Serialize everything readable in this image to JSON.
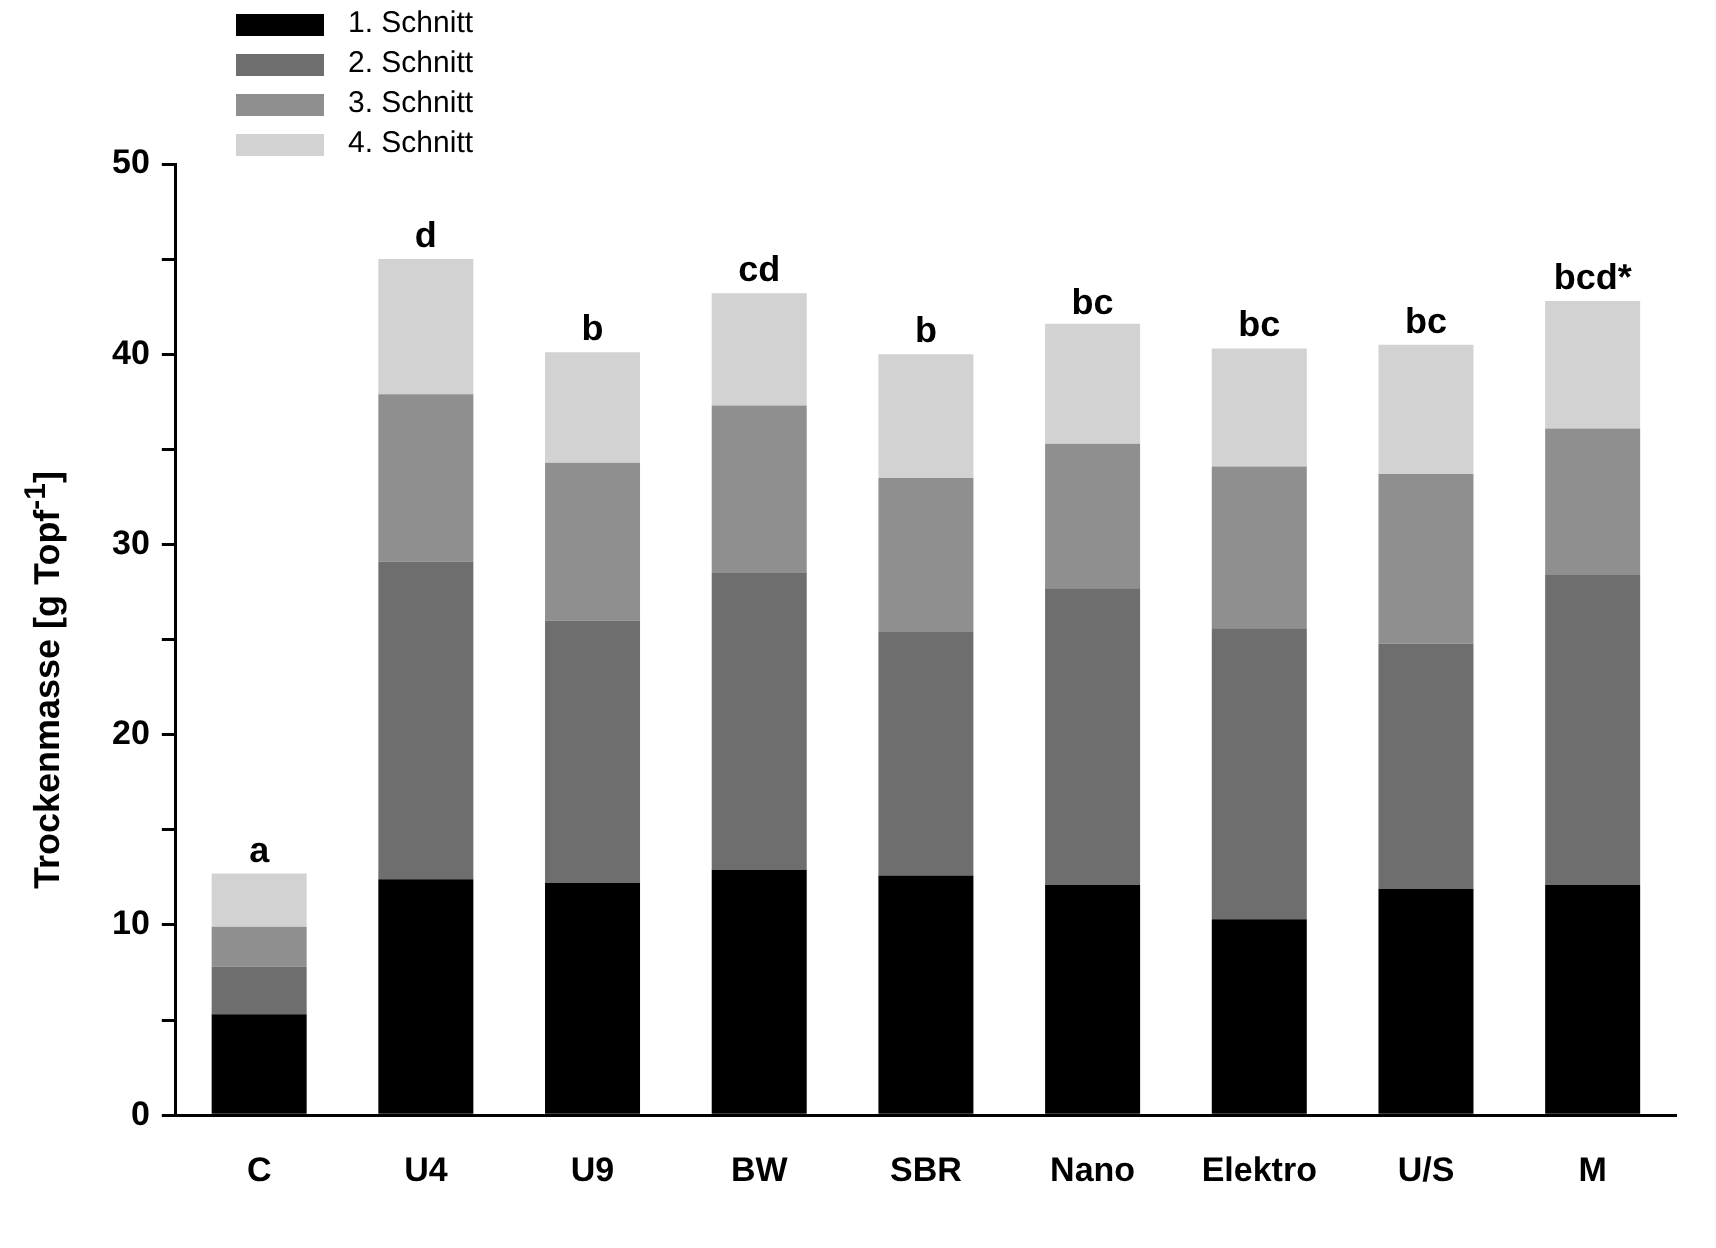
{
  "chart_data": {
    "type": "bar",
    "stacked": true,
    "ylabel": "Trockenmasse [g Topf$^{-1}$]",
    "categories": [
      "C",
      "U4",
      "U9",
      "BW",
      "SBR",
      "Nano",
      "Elektro",
      "U/S",
      "M"
    ],
    "series": [
      {
        "name": "1. Schnitt",
        "color": "#000000",
        "values": [
          5.3,
          12.4,
          12.2,
          12.9,
          12.6,
          12.1,
          10.3,
          11.9,
          12.1
        ]
      },
      {
        "name": "2. Schnitt",
        "color": "#6e6e6e",
        "values": [
          2.5,
          16.7,
          13.8,
          15.6,
          12.8,
          15.6,
          15.3,
          12.9,
          16.3
        ]
      },
      {
        "name": "3. Schnitt",
        "color": "#8f8f8f",
        "values": [
          2.1,
          8.8,
          8.3,
          8.8,
          8.1,
          7.6,
          8.5,
          8.9,
          7.7
        ]
      },
      {
        "name": "4. Schnitt",
        "color": "#d2d2d2",
        "values": [
          2.8,
          7.1,
          5.8,
          5.9,
          6.5,
          6.3,
          6.2,
          6.8,
          6.7
        ]
      }
    ],
    "ylim": [
      0,
      50
    ],
    "yticks": [
      0,
      {
        "value": 5,
        "label": null
      },
      10,
      {
        "value": 15,
        "label": null
      },
      20,
      {
        "value": 25,
        "label": null
      },
      30,
      {
        "value": 35,
        "label": null
      },
      40,
      {
        "value": 45,
        "label": null
      },
      50
    ],
    "annotations": [
      {
        "text": "a",
        "x": "C",
        "y": 12.7
      },
      {
        "text": "d",
        "x": "U4",
        "y": 45.0
      },
      {
        "text": "b",
        "x": "U9",
        "y": 40.1
      },
      {
        "text": "cd",
        "x": "BW",
        "y": 43.2
      },
      {
        "text": "b",
        "x": "SBR",
        "y": 40.0
      },
      {
        "text": "bc",
        "x": "Nano",
        "y": 41.5
      },
      {
        "text": "bc",
        "x": "Elektro",
        "y": 40.3
      },
      {
        "text": "bc",
        "x": "U/S",
        "y": 40.5
      },
      {
        "text": "bcd*",
        "x": "M",
        "y": 42.8
      }
    ],
    "legend": "top left",
    "grid": false
  }
}
